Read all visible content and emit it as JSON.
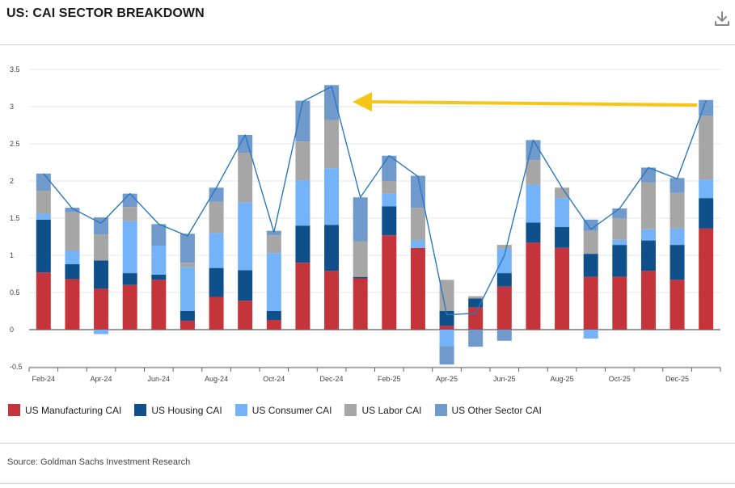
{
  "header": {
    "title": "US: CAI SECTOR BREAKDOWN",
    "download_icon": "download-icon"
  },
  "footer": {
    "source": "Source: Goldman Sachs Investment Research"
  },
  "colors": {
    "manufacturing": "#c3353a",
    "housing": "#0f4f8a",
    "consumer": "#74b3f7",
    "labor": "#a6a6a6",
    "other": "#6f9acb",
    "line": "#2a78c2",
    "arrow": "#f5c518"
  },
  "chart_data": {
    "type": "bar",
    "stacked": true,
    "title": "US: CAI SECTOR BREAKDOWN",
    "ylim": [
      -0.5,
      3.5
    ],
    "yticks": [
      -0.5,
      0,
      0.5,
      1,
      1.5,
      2,
      2.5,
      3,
      3.5
    ],
    "ytick_labels": [
      "-0.5",
      "0",
      "0.5",
      "1",
      "1.5",
      "2",
      "2.5",
      "3",
      "3.5"
    ],
    "categories": [
      "Feb-24",
      "Mar-24",
      "Apr-24",
      "May-24",
      "Jun-24",
      "Jul-24",
      "Aug-24",
      "Sep-24",
      "Oct-24",
      "Nov-24",
      "Dec-24",
      "Jan-25",
      "Feb-25",
      "Mar-25",
      "Apr-25",
      "May-25",
      "Jun-25",
      "Jul-25",
      "Aug-25",
      "Sep-25",
      "Oct-25",
      "Nov-25",
      "Dec-25",
      "Jan-26"
    ],
    "xtick_labels": [
      "Feb-24",
      "Apr-24",
      "Jun-24",
      "Aug-24",
      "Oct-24",
      "Dec-24",
      "Feb-25",
      "Apr-25",
      "Jun-25",
      "Aug-25",
      "Oct-25",
      "Dec-25"
    ],
    "series": [
      {
        "name": "US Manufacturing CAI",
        "key": "manufacturing",
        "values": [
          0.77,
          0.68,
          0.55,
          0.6,
          0.67,
          0.12,
          0.44,
          0.39,
          0.13,
          0.9,
          0.79,
          0.69,
          1.27,
          1.1,
          0.05,
          0.3,
          0.58,
          1.17,
          1.1,
          0.71,
          0.71,
          0.79,
          0.67,
          1.36
        ]
      },
      {
        "name": "US Housing CAI",
        "key": "housing",
        "values": [
          0.71,
          0.2,
          0.38,
          0.16,
          0.07,
          0.13,
          0.39,
          0.41,
          0.12,
          0.5,
          0.62,
          0.02,
          0.39,
          0.0,
          0.2,
          0.12,
          0.18,
          0.27,
          0.28,
          0.31,
          0.43,
          0.41,
          0.47,
          0.41
        ]
      },
      {
        "name": "US Consumer CAI",
        "key": "consumer",
        "values": [
          0.08,
          0.18,
          -0.06,
          0.7,
          0.39,
          0.59,
          0.47,
          0.91,
          0.78,
          0.61,
          0.76,
          0.0,
          0.17,
          0.1,
          -0.22,
          0.0,
          0.33,
          0.51,
          0.39,
          -0.12,
          0.07,
          0.15,
          0.22,
          0.25
        ]
      },
      {
        "name": "US Labor CAI",
        "key": "labor",
        "values": [
          0.31,
          0.52,
          0.35,
          0.19,
          0.0,
          0.06,
          0.42,
          0.67,
          0.24,
          0.52,
          0.65,
          0.48,
          0.17,
          0.44,
          0.42,
          0.03,
          0.05,
          0.33,
          0.14,
          0.31,
          0.29,
          0.63,
          0.48,
          0.86
        ]
      },
      {
        "name": "US Other Sector CAI",
        "key": "other",
        "values": [
          0.23,
          0.06,
          0.23,
          0.18,
          0.29,
          0.39,
          0.19,
          0.24,
          0.06,
          0.55,
          0.47,
          0.59,
          0.34,
          0.43,
          -0.25,
          -0.23,
          -0.15,
          0.27,
          0.0,
          0.15,
          0.13,
          0.2,
          0.2,
          0.21
        ]
      }
    ],
    "total_line": {
      "name": "Total",
      "values": [
        2.1,
        1.63,
        1.43,
        1.83,
        1.42,
        1.26,
        1.91,
        2.62,
        1.31,
        3.07,
        3.27,
        1.78,
        2.34,
        2.06,
        0.2,
        0.22,
        1.0,
        2.55,
        1.91,
        1.35,
        1.63,
        2.18,
        2.03,
        3.08
      ]
    },
    "legend_position": "bottom",
    "annotation": "yellow arrow pointing left from Jan-26 toward Dec-24 peak"
  }
}
